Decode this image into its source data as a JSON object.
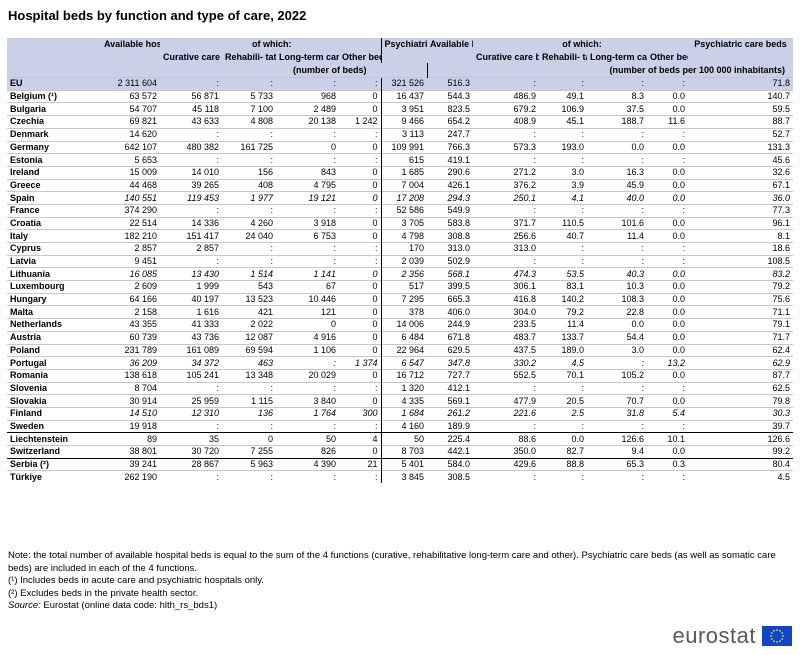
{
  "title": "Hospital beds by function and type of care, 2022",
  "chart_data": {
    "type": "table",
    "header": {
      "available": "Available hospital beds",
      "of_which": "of which:",
      "curative": "Curative care beds",
      "rehab": "Rehabili- tative care beds",
      "longterm": "Long-term care beds",
      "other": "Other beds",
      "psychiatric": "Psychiatric care beds",
      "unit_left": "(number of beds)",
      "unit_right": "(number of beds per 100 000 inhabitants)"
    },
    "columns": [
      "Available hospital beds",
      "Curative care beds",
      "Rehabilitative care beds",
      "Long-term care beds",
      "Other beds",
      "Psychiatric care beds",
      "Available hospital beds",
      "Curative care beds",
      "Rehabilitative care beds",
      "Long-term care beds",
      "Other beds",
      "Psychiatric care beds"
    ],
    "rows": [
      {
        "country": "EU",
        "eu": true,
        "italic": false,
        "values": [
          "2 311 604",
          ":",
          ":",
          ":",
          ":",
          "321 526",
          "516.3",
          ":",
          ":",
          ":",
          ":",
          "71.8"
        ]
      },
      {
        "country": "Belgium (¹)",
        "italic": false,
        "values": [
          "63 572",
          "56 871",
          "5 733",
          "968",
          "0",
          "16 437",
          "544.3",
          "486.9",
          "49.1",
          "8.3",
          "0.0",
          "140.7"
        ]
      },
      {
        "country": "Bulgaria",
        "italic": false,
        "values": [
          "54 707",
          "45 118",
          "7 100",
          "2 489",
          "0",
          "3 951",
          "823.5",
          "679.2",
          "106.9",
          "37.5",
          "0.0",
          "59.5"
        ]
      },
      {
        "country": "Czechia",
        "italic": false,
        "values": [
          "69 821",
          "43 633",
          "4 808",
          "20 138",
          "1 242",
          "9 466",
          "654.2",
          "408.9",
          "45.1",
          "188.7",
          "11.6",
          "88.7"
        ]
      },
      {
        "country": "Denmark",
        "italic": false,
        "values": [
          "14 620",
          ":",
          ":",
          ":",
          ":",
          "3 113",
          "247.7",
          ":",
          ":",
          ":",
          ":",
          "52.7"
        ]
      },
      {
        "country": "Germany",
        "italic": false,
        "values": [
          "642 107",
          "480 382",
          "161 725",
          "0",
          "0",
          "109 991",
          "766.3",
          "573.3",
          "193.0",
          "0.0",
          "0.0",
          "131.3"
        ]
      },
      {
        "country": "Estonia",
        "italic": false,
        "values": [
          "5 653",
          ":",
          ":",
          ":",
          ":",
          "615",
          "419.1",
          ":",
          ":",
          ":",
          ":",
          "45.6"
        ]
      },
      {
        "country": "Ireland",
        "italic": false,
        "values": [
          "15 009",
          "14 010",
          "156",
          "843",
          "0",
          "1 685",
          "290.6",
          "271.2",
          "3.0",
          "16.3",
          "0.0",
          "32.6"
        ]
      },
      {
        "country": "Greece",
        "italic": false,
        "values": [
          "44 468",
          "39 265",
          "408",
          "4 795",
          "0",
          "7 004",
          "426.1",
          "376.2",
          "3.9",
          "45.9",
          "0.0",
          "67.1"
        ]
      },
      {
        "country": "Spain",
        "italic": true,
        "values": [
          "140 551",
          "119 453",
          "1 977",
          "19 121",
          "0",
          "17 208",
          "294.3",
          "250.1",
          "4.1",
          "40.0",
          "0.0",
          "36.0"
        ]
      },
      {
        "country": "France",
        "italic": false,
        "values": [
          "374 290",
          ":",
          ":",
          ":",
          ":",
          "52 586",
          "549.9",
          ":",
          ":",
          ":",
          ":",
          "77.3"
        ]
      },
      {
        "country": "Croatia",
        "italic": false,
        "values": [
          "22 514",
          "14 336",
          "4 260",
          "3 918",
          "0",
          "3 705",
          "583.8",
          "371.7",
          "110.5",
          "101.6",
          "0.0",
          "96.1"
        ]
      },
      {
        "country": "Italy",
        "italic": false,
        "values": [
          "182 210",
          "151 417",
          "24 040",
          "6 753",
          "0",
          "4 798",
          "308.8",
          "256.6",
          "40.7",
          "11.4",
          "0.0",
          "8.1"
        ]
      },
      {
        "country": "Cyprus",
        "italic": false,
        "values": [
          "2 857",
          "2 857",
          ":",
          ":",
          ":",
          "170",
          "313.0",
          "313.0",
          ":",
          ":",
          ":",
          "18.6"
        ]
      },
      {
        "country": "Latvia",
        "italic": false,
        "values": [
          "9 451",
          ":",
          ":",
          ":",
          ":",
          "2 039",
          "502.9",
          ":",
          ":",
          ":",
          ":",
          "108.5"
        ]
      },
      {
        "country": "Lithuania",
        "italic": true,
        "values": [
          "16 085",
          "13 430",
          "1 514",
          "1 141",
          "0",
          "2 356",
          "568.1",
          "474.3",
          "53.5",
          "40.3",
          "0.0",
          "83.2"
        ]
      },
      {
        "country": "Luxembourg",
        "italic": false,
        "values": [
          "2 609",
          "1 999",
          "543",
          "67",
          "0",
          "517",
          "399.5",
          "306.1",
          "83.1",
          "10.3",
          "0.0",
          "79.2"
        ]
      },
      {
        "country": "Hungary",
        "italic": false,
        "values": [
          "64 166",
          "40 197",
          "13 523",
          "10 446",
          "0",
          "7 295",
          "665.3",
          "416.8",
          "140.2",
          "108.3",
          "0.0",
          "75.6"
        ]
      },
      {
        "country": "Malta",
        "italic": false,
        "values": [
          "2 158",
          "1 616",
          "421",
          "121",
          "0",
          "378",
          "406.0",
          "304.0",
          "79.2",
          "22.8",
          "0.0",
          "71.1"
        ]
      },
      {
        "country": "Netherlands",
        "italic": false,
        "values": [
          "43 355",
          "41 333",
          "2 022",
          "0",
          "0",
          "14 006",
          "244.9",
          "233.5",
          "11.4",
          "0.0",
          "0.0",
          "79.1"
        ]
      },
      {
        "country": "Austria",
        "italic": false,
        "values": [
          "60 739",
          "43 736",
          "12 087",
          "4 916",
          "0",
          "6 484",
          "671.8",
          "483.7",
          "133.7",
          "54.4",
          "0.0",
          "71.7"
        ]
      },
      {
        "country": "Poland",
        "italic": false,
        "values": [
          "231 789",
          "161 089",
          "69 594",
          "1 106",
          "0",
          "22 964",
          "629.5",
          "437.5",
          "189.0",
          "3.0",
          "0.0",
          "62.4"
        ]
      },
      {
        "country": "Portugal",
        "italic": true,
        "values": [
          "36 209",
          "34 372",
          "463",
          ":",
          "1 374",
          "6 547",
          "347.8",
          "330.2",
          "4.5",
          ":",
          "13.2",
          "62.9"
        ]
      },
      {
        "country": "Romania",
        "italic": false,
        "values": [
          "138 618",
          "105 241",
          "13 348",
          "20 029",
          "0",
          "16 712",
          "727.7",
          "552.5",
          "70.1",
          "105.2",
          "0.0",
          "87.7"
        ]
      },
      {
        "country": "Slovenia",
        "italic": false,
        "values": [
          "8 704",
          ":",
          ":",
          ":",
          ":",
          "1 320",
          "412.1",
          ":",
          ":",
          ":",
          ":",
          "62.5"
        ]
      },
      {
        "country": "Slovakia",
        "italic": false,
        "values": [
          "30 914",
          "25 959",
          "1 115",
          "3 840",
          "0",
          "4 335",
          "569.1",
          "477.9",
          "20.5",
          "70.7",
          "0.0",
          "79.8"
        ]
      },
      {
        "country": "Finland",
        "italic": true,
        "values": [
          "14 510",
          "12 310",
          "136",
          "1 764",
          "300",
          "1 684",
          "261.2",
          "221.6",
          "2.5",
          "31.8",
          "5.4",
          "30.3"
        ]
      },
      {
        "country": "Sweden",
        "italic": false,
        "values": [
          "19 918",
          ":",
          ":",
          ":",
          ":",
          "4 160",
          "189.9",
          ":",
          ":",
          ":",
          ":",
          "39.7"
        ]
      },
      {
        "country": "Liechtenstein",
        "group_start": true,
        "italic": false,
        "values": [
          "89",
          "35",
          "0",
          "50",
          "4",
          "50",
          "225.4",
          "88.6",
          "0.0",
          "126.6",
          "10.1",
          "126.6"
        ]
      },
      {
        "country": "Switzerland",
        "italic": false,
        "values": [
          "38 801",
          "30 720",
          "7 255",
          "826",
          "0",
          "8 703",
          "442.1",
          "350.0",
          "82.7",
          "9.4",
          "0.0",
          "99.2"
        ]
      },
      {
        "country": "Serbia (²)",
        "group_start": true,
        "italic": false,
        "values": [
          "39 241",
          "28 867",
          "5 963",
          "4 390",
          "21",
          "5 401",
          "584.0",
          "429.6",
          "88.8",
          "65.3",
          "0.3",
          "80.4"
        ]
      },
      {
        "country": "Türkiye",
        "italic": false,
        "values": [
          "262 190",
          ":",
          ":",
          ":",
          ":",
          "3 845",
          "308.5",
          ":",
          ":",
          ":",
          ":",
          "4.5"
        ]
      }
    ]
  },
  "notes": [
    "Note: the total number of available hospital beds is equal to the sum of the 4 functions (curative, rehabilitative long-term care and other). Psychiatric care beds (as well as somatic care beds) are included in each of the 4 functions.",
    "(¹) Includes beds in acute care and psychiatric hospitals only.",
    "(²) Excludes beds in the private health sector."
  ],
  "source_label": "Source:",
  "source_text": "Eurostat (online data code: hlth_rs_bds1)",
  "logo_text": "eurostat",
  "colors": {
    "header_bg": "#c9d0e8",
    "flag": "#0e47cb",
    "star": "#ffd200"
  }
}
